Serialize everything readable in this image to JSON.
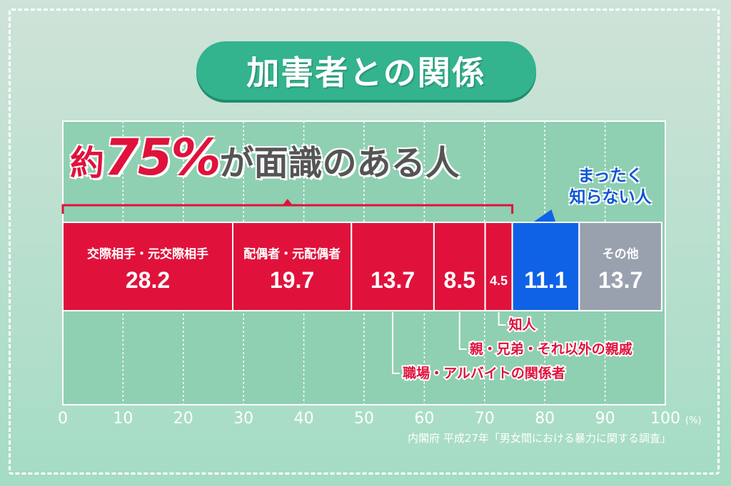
{
  "title": "加害者との関係",
  "headline": {
    "kanji": "約",
    "percent": "75%",
    "rest": "が面識のある人"
  },
  "unknown_label": [
    "まったく",
    "知らない人"
  ],
  "source": "内閣府 平成27年「男女間における暴力に関する調査」",
  "colors": {
    "known": "#e0123b",
    "unknown": "#0f62e6",
    "other": "#9aa1ae",
    "title_bg": "#33b38e",
    "grid_bg": "#8fcfb2"
  },
  "chart_data": {
    "type": "bar",
    "orientation": "horizontal-stacked",
    "unit": "(%)",
    "xlim": [
      0,
      100
    ],
    "xticks": [
      0,
      10,
      20,
      30,
      40,
      50,
      60,
      70,
      80,
      90,
      100
    ],
    "grid": true,
    "segments": [
      {
        "label": "交際相手・元交際相手",
        "value": 28.2,
        "value_label": "28.2",
        "group": "known",
        "label_position": "inside"
      },
      {
        "label": "配偶者・元配偶者",
        "value": 19.7,
        "value_label": "19.7",
        "group": "known",
        "label_position": "inside"
      },
      {
        "label": "職場・アルバイトの関係者",
        "value": 13.7,
        "value_label": "13.7",
        "group": "known",
        "label_position": "callout"
      },
      {
        "label": "親・兄弟・それ以外の親戚",
        "value": 8.5,
        "value_label": "8.5",
        "group": "known",
        "label_position": "callout"
      },
      {
        "label": "知人",
        "value": 4.5,
        "value_label": "4.5",
        "group": "known",
        "label_position": "callout"
      },
      {
        "label": "まったく知らない人",
        "value": 11.1,
        "value_label": "11.1",
        "group": "unknown",
        "label_position": "external"
      },
      {
        "label": "その他",
        "value": 13.7,
        "value_label": "13.7",
        "group": "other",
        "label_position": "inside"
      }
    ]
  }
}
